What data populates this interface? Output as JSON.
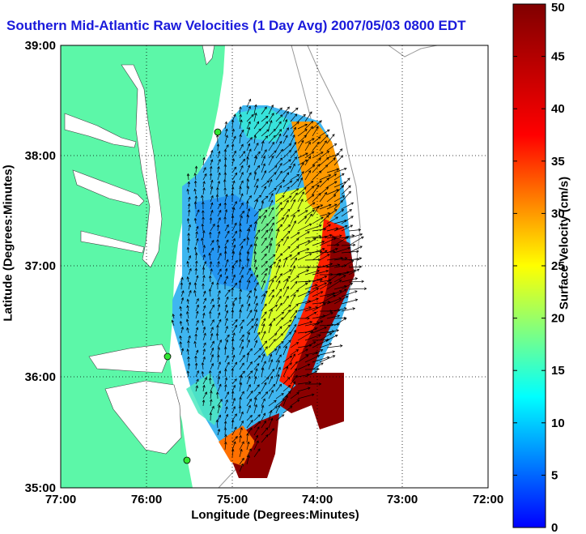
{
  "title": "Southern Mid-Atlantic Raw Velocities (1 Day Avg) 2007/05/03 0800 EDT",
  "x_axis": {
    "label": "Longitude (Degrees:Minutes)",
    "ticks": [
      "77:00",
      "76:00",
      "75:00",
      "74:00",
      "73:00",
      "72:00"
    ]
  },
  "y_axis": {
    "label": "Latitude (Degrees:Minutes)",
    "ticks": [
      "39:00",
      "38:00",
      "37:00",
      "36:00",
      "35:00"
    ]
  },
  "colorbar": {
    "label": "Surface Velocity (cm/s)",
    "ticks": [
      "50",
      "45",
      "40",
      "35",
      "30",
      "25",
      "20",
      "15",
      "10",
      "5",
      "0"
    ],
    "min": 0,
    "max": 50,
    "colormap": "jet"
  },
  "colors": {
    "land": "#5cf7a8",
    "water": "#ffffff",
    "title": "#1a1adb",
    "grid": "#000000",
    "vectors": "#000000",
    "station_marker": "#33e633"
  },
  "grid": "dotted"
}
